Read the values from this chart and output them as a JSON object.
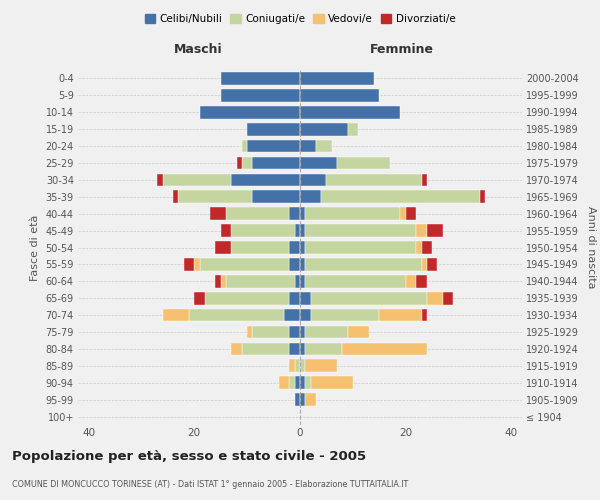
{
  "age_groups": [
    "100+",
    "95-99",
    "90-94",
    "85-89",
    "80-84",
    "75-79",
    "70-74",
    "65-69",
    "60-64",
    "55-59",
    "50-54",
    "45-49",
    "40-44",
    "35-39",
    "30-34",
    "25-29",
    "20-24",
    "15-19",
    "10-14",
    "5-9",
    "0-4"
  ],
  "birth_years": [
    "≤ 1904",
    "1905-1909",
    "1910-1914",
    "1915-1919",
    "1920-1924",
    "1925-1929",
    "1930-1934",
    "1935-1939",
    "1940-1944",
    "1945-1949",
    "1950-1954",
    "1955-1959",
    "1960-1964",
    "1965-1969",
    "1970-1974",
    "1975-1979",
    "1980-1984",
    "1985-1989",
    "1990-1994",
    "1995-1999",
    "2000-2004"
  ],
  "maschi": {
    "celibi": [
      0,
      1,
      1,
      0,
      2,
      2,
      3,
      2,
      1,
      2,
      2,
      1,
      2,
      9,
      13,
      9,
      10,
      10,
      19,
      15,
      15
    ],
    "coniugati": [
      0,
      0,
      1,
      1,
      9,
      7,
      18,
      16,
      13,
      17,
      11,
      12,
      12,
      14,
      13,
      2,
      1,
      0,
      0,
      0,
      0
    ],
    "vedovi": [
      0,
      0,
      2,
      1,
      2,
      1,
      5,
      0,
      1,
      1,
      0,
      0,
      0,
      0,
      0,
      0,
      0,
      0,
      0,
      0,
      0
    ],
    "divorziati": [
      0,
      0,
      0,
      0,
      0,
      0,
      0,
      2,
      1,
      2,
      3,
      2,
      3,
      1,
      1,
      1,
      0,
      0,
      0,
      0,
      0
    ]
  },
  "femmine": {
    "nubili": [
      0,
      1,
      1,
      0,
      1,
      1,
      2,
      2,
      1,
      1,
      1,
      1,
      1,
      4,
      5,
      7,
      3,
      9,
      19,
      15,
      14
    ],
    "coniugate": [
      0,
      0,
      1,
      1,
      7,
      8,
      13,
      22,
      19,
      22,
      21,
      21,
      18,
      30,
      18,
      10,
      3,
      2,
      0,
      0,
      0
    ],
    "vedove": [
      0,
      2,
      8,
      6,
      16,
      4,
      8,
      3,
      2,
      1,
      1,
      2,
      1,
      0,
      0,
      0,
      0,
      0,
      0,
      0,
      0
    ],
    "divorziate": [
      0,
      0,
      0,
      0,
      0,
      0,
      1,
      2,
      2,
      2,
      2,
      3,
      2,
      1,
      1,
      0,
      0,
      0,
      0,
      0,
      0
    ]
  },
  "colors": {
    "celibi": "#4472a8",
    "coniugati": "#c5d5a0",
    "vedovi": "#f5c070",
    "divorziati": "#c0282a"
  },
  "xlim": 42,
  "title": "Popolazione per età, sesso e stato civile - 2005",
  "subtitle": "COMUNE DI MONCUCCO TORINESE (AT) - Dati ISTAT 1° gennaio 2005 - Elaborazione TUTTAITALIA.IT",
  "ylabel_left": "Fasce di età",
  "ylabel_right": "Anni di nascita",
  "legend_labels": [
    "Celibi/Nubili",
    "Coniugati/e",
    "Vedovi/e",
    "Divorziati/e"
  ],
  "maschi_label": "Maschi",
  "femmine_label": "Femmine",
  "background_color": "#f0f0f0"
}
